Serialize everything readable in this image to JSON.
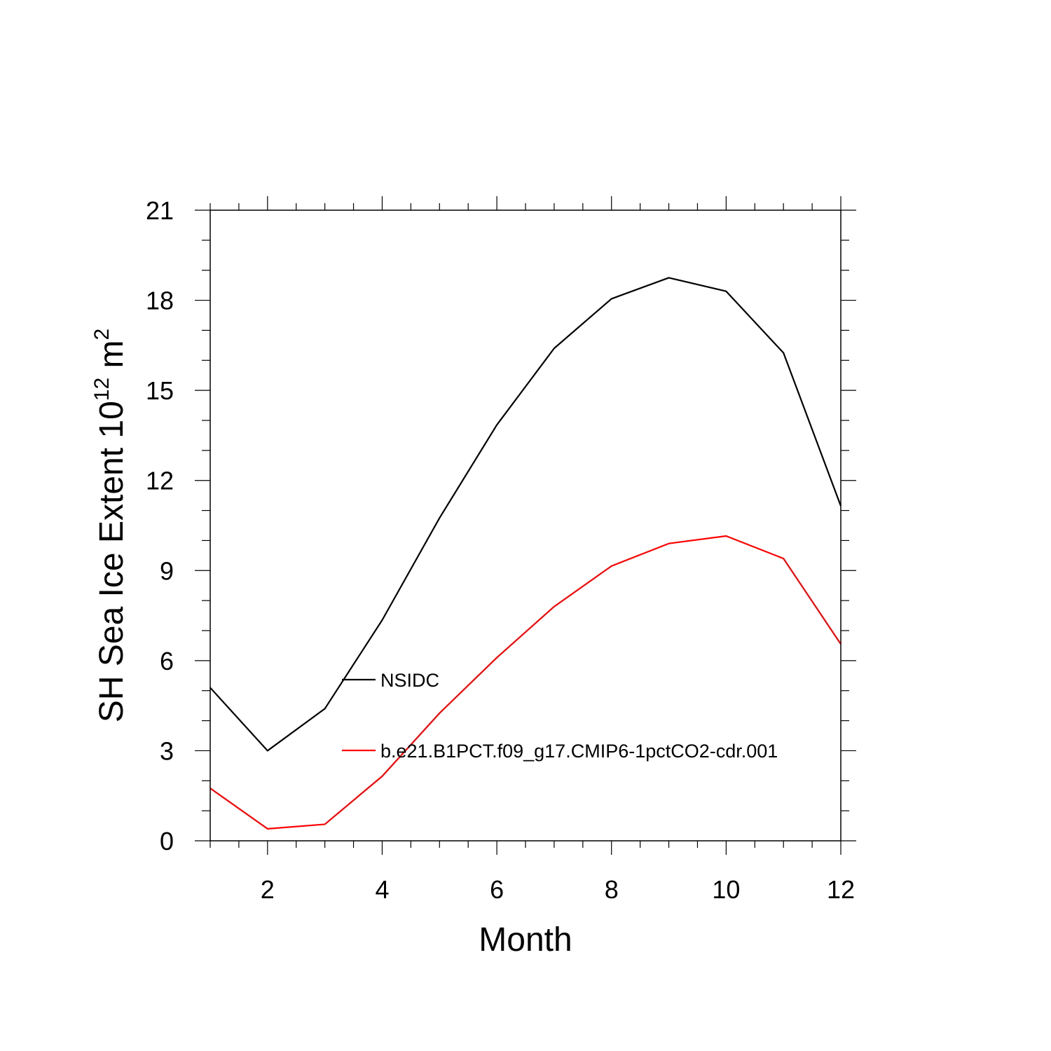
{
  "chart_data": {
    "type": "line",
    "xlabel": "Month",
    "ylabel": {
      "main": "SH Sea Ice Extent 10",
      "superscript_1": "12",
      "unit": " m",
      "superscript_2": "2"
    },
    "xlim": [
      1,
      12
    ],
    "ylim": [
      0,
      21
    ],
    "x_ticks": [
      2,
      4,
      6,
      8,
      10,
      12
    ],
    "y_ticks": [
      0,
      3,
      6,
      9,
      12,
      15,
      18,
      21
    ],
    "grid": false,
    "legend_position": "inside-center",
    "x": [
      1,
      2,
      3,
      4,
      5,
      6,
      7,
      8,
      9,
      10,
      11,
      12
    ],
    "series": [
      {
        "name": "NSIDC",
        "color": "#000000",
        "values": [
          5.1,
          3.0,
          4.4,
          7.35,
          10.75,
          13.85,
          16.4,
          18.05,
          18.75,
          18.3,
          16.25,
          11.15
        ]
      },
      {
        "name": "b.e21.B1PCT.f09_g17.CMIP6-1pctCO2-cdr.001",
        "color": "#ff0000",
        "values": [
          1.75,
          0.4,
          0.55,
          2.15,
          4.25,
          6.1,
          7.8,
          9.15,
          9.9,
          10.15,
          9.4,
          6.55
        ]
      }
    ]
  }
}
